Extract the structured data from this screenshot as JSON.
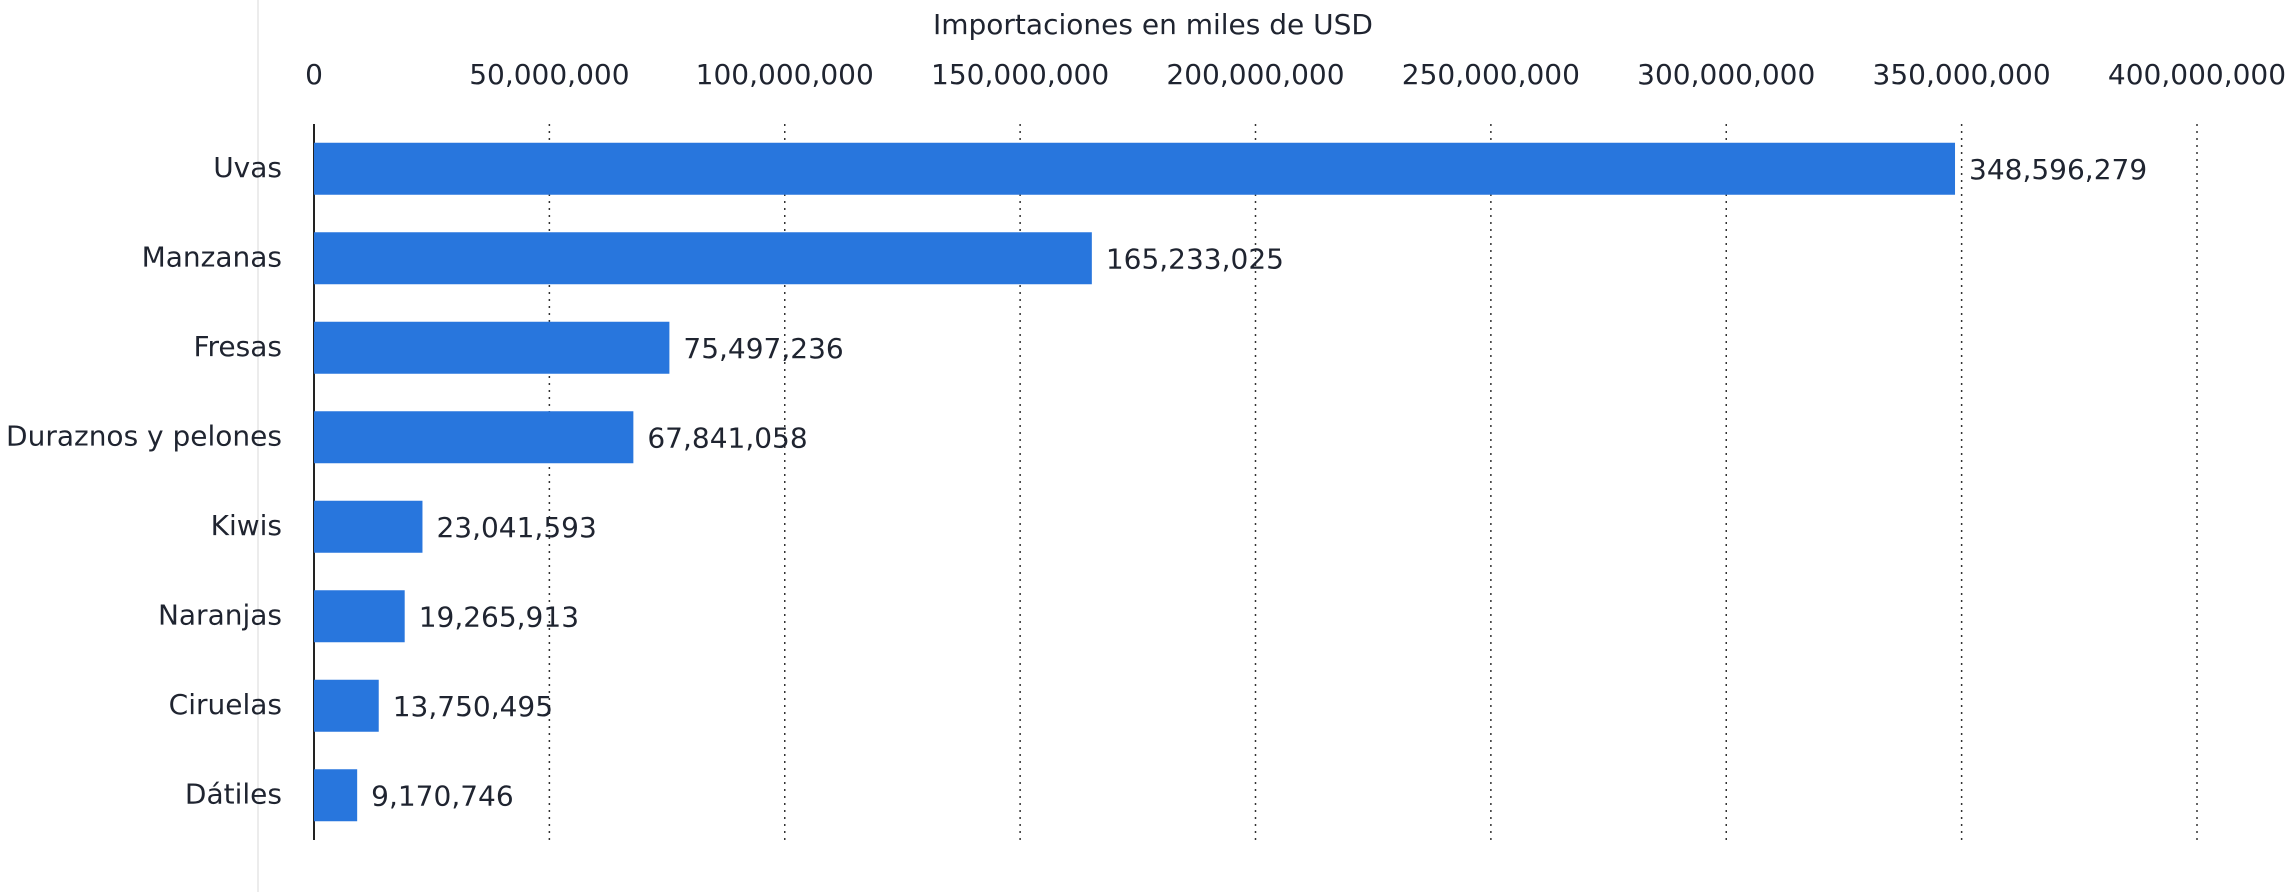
{
  "chart_data": {
    "type": "bar",
    "orientation": "horizontal",
    "x_label": "Importaciones en miles de USD",
    "categories": [
      "Uvas",
      "Manzanas",
      "Fresas",
      "Duraznos y pelones",
      "Kiwis",
      "Naranjas",
      "Ciruelas",
      "Dátiles"
    ],
    "values": [
      348596279,
      165233025,
      75497236,
      67841058,
      23041593,
      19265913,
      13750495,
      9170746
    ],
    "value_labels": [
      "348,596,279",
      "165,233,025",
      "75,497,236",
      "67,841,058",
      "23,041,593",
      "19,265,913",
      "13,750,495",
      "9,170,746"
    ],
    "color": "#2876dd",
    "xlim": [
      0,
      400000000
    ],
    "xticks": [
      0,
      {
        "value": 50000000,
        "label": "50,000,000"
      },
      {
        "value": 100000000,
        "label": "100,000,000"
      },
      {
        "value": 150000000,
        "label": "150,000,000"
      },
      {
        "value": 200000000,
        "label": "200,000,000"
      },
      {
        "value": 250000000,
        "label": "250,000,000"
      },
      {
        "value": 300000000,
        "label": "300,000,000"
      },
      {
        "value": 350000000,
        "label": "350,000,000"
      },
      {
        "value": 400000000,
        "label": "400,000,000"
      }
    ],
    "grid": true
  }
}
